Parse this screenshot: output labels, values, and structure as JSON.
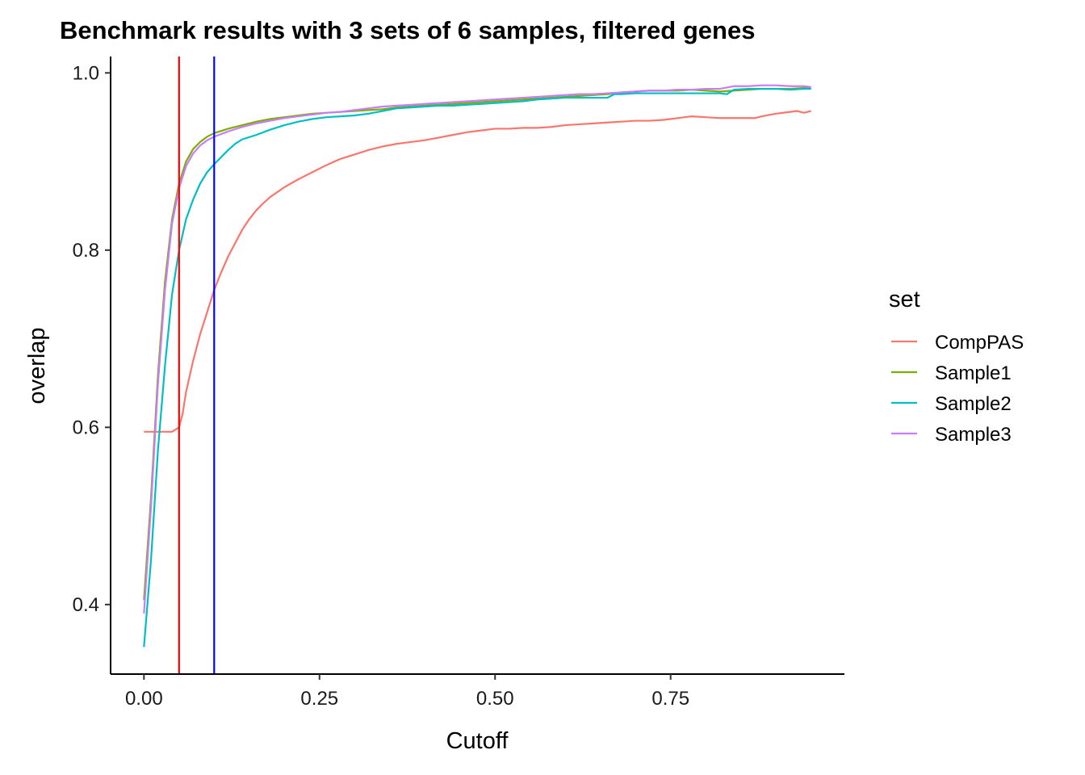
{
  "chart_data": {
    "type": "line",
    "title": "Benchmark results with 3 sets of 6 samples, filtered genes",
    "xlabel": "Cutoff",
    "ylabel": "overlap",
    "xlim": [
      -0.0475,
      0.9975
    ],
    "ylim": [
      0.3215,
      1.0185
    ],
    "x_ticks": [
      {
        "value": 0.0,
        "label": "0.00"
      },
      {
        "value": 0.25,
        "label": "0.25"
      },
      {
        "value": 0.5,
        "label": "0.50"
      },
      {
        "value": 0.75,
        "label": "0.75"
      }
    ],
    "y_ticks": [
      {
        "value": 0.4,
        "label": "0.4"
      },
      {
        "value": 0.6,
        "label": "0.6"
      },
      {
        "value": 0.8,
        "label": "0.8"
      },
      {
        "value": 1.0,
        "label": "1.0"
      }
    ],
    "grid": false,
    "vlines": [
      {
        "x": 0.05,
        "color": "#FF0000"
      },
      {
        "x": 0.1,
        "color": "#0000FF"
      }
    ],
    "legend": {
      "title": "set",
      "position": "right",
      "entries": [
        {
          "label": "CompPAS",
          "color": "#F8766D"
        },
        {
          "label": "Sample1",
          "color": "#7CAE00"
        },
        {
          "label": "Sample2",
          "color": "#00BFC4"
        },
        {
          "label": "Sample3",
          "color": "#C77CFF"
        }
      ]
    },
    "series": [
      {
        "name": "CompPAS",
        "color": "#F8766D",
        "points": [
          [
            0.0,
            0.595
          ],
          [
            0.01,
            0.595
          ],
          [
            0.02,
            0.595
          ],
          [
            0.03,
            0.595
          ],
          [
            0.04,
            0.595
          ],
          [
            0.05,
            0.6
          ],
          [
            0.055,
            0.615
          ],
          [
            0.06,
            0.64
          ],
          [
            0.07,
            0.675
          ],
          [
            0.08,
            0.705
          ],
          [
            0.09,
            0.73
          ],
          [
            0.1,
            0.755
          ],
          [
            0.11,
            0.775
          ],
          [
            0.12,
            0.793
          ],
          [
            0.13,
            0.808
          ],
          [
            0.14,
            0.823
          ],
          [
            0.15,
            0.835
          ],
          [
            0.16,
            0.845
          ],
          [
            0.17,
            0.853
          ],
          [
            0.18,
            0.86
          ],
          [
            0.2,
            0.871
          ],
          [
            0.22,
            0.88
          ],
          [
            0.24,
            0.888
          ],
          [
            0.26,
            0.896
          ],
          [
            0.28,
            0.903
          ],
          [
            0.3,
            0.908
          ],
          [
            0.32,
            0.913
          ],
          [
            0.34,
            0.917
          ],
          [
            0.36,
            0.92
          ],
          [
            0.38,
            0.922
          ],
          [
            0.4,
            0.924
          ],
          [
            0.42,
            0.927
          ],
          [
            0.44,
            0.93
          ],
          [
            0.46,
            0.933
          ],
          [
            0.48,
            0.935
          ],
          [
            0.5,
            0.937
          ],
          [
            0.52,
            0.937
          ],
          [
            0.54,
            0.938
          ],
          [
            0.56,
            0.938
          ],
          [
            0.58,
            0.939
          ],
          [
            0.6,
            0.941
          ],
          [
            0.62,
            0.942
          ],
          [
            0.64,
            0.943
          ],
          [
            0.66,
            0.944
          ],
          [
            0.68,
            0.945
          ],
          [
            0.7,
            0.946
          ],
          [
            0.72,
            0.946
          ],
          [
            0.74,
            0.947
          ],
          [
            0.76,
            0.949
          ],
          [
            0.78,
            0.951
          ],
          [
            0.8,
            0.95
          ],
          [
            0.82,
            0.949
          ],
          [
            0.84,
            0.949
          ],
          [
            0.86,
            0.949
          ],
          [
            0.87,
            0.949
          ],
          [
            0.88,
            0.951
          ],
          [
            0.9,
            0.954
          ],
          [
            0.92,
            0.956
          ],
          [
            0.93,
            0.957
          ],
          [
            0.94,
            0.955
          ],
          [
            0.95,
            0.957
          ]
        ]
      },
      {
        "name": "Sample1",
        "color": "#7CAE00",
        "points": [
          [
            0.0,
            0.405
          ],
          [
            0.01,
            0.52
          ],
          [
            0.02,
            0.66
          ],
          [
            0.03,
            0.765
          ],
          [
            0.04,
            0.835
          ],
          [
            0.05,
            0.875
          ],
          [
            0.06,
            0.9
          ],
          [
            0.07,
            0.914
          ],
          [
            0.08,
            0.922
          ],
          [
            0.09,
            0.928
          ],
          [
            0.1,
            0.932
          ],
          [
            0.12,
            0.937
          ],
          [
            0.14,
            0.941
          ],
          [
            0.16,
            0.945
          ],
          [
            0.18,
            0.948
          ],
          [
            0.2,
            0.95
          ],
          [
            0.22,
            0.952
          ],
          [
            0.24,
            0.954
          ],
          [
            0.26,
            0.955
          ],
          [
            0.28,
            0.956
          ],
          [
            0.3,
            0.957
          ],
          [
            0.32,
            0.958
          ],
          [
            0.34,
            0.959
          ],
          [
            0.36,
            0.961
          ],
          [
            0.38,
            0.962
          ],
          [
            0.4,
            0.963
          ],
          [
            0.42,
            0.964
          ],
          [
            0.44,
            0.965
          ],
          [
            0.46,
            0.966
          ],
          [
            0.48,
            0.967
          ],
          [
            0.5,
            0.968
          ],
          [
            0.52,
            0.969
          ],
          [
            0.54,
            0.97
          ],
          [
            0.56,
            0.971
          ],
          [
            0.58,
            0.972
          ],
          [
            0.6,
            0.973
          ],
          [
            0.62,
            0.974
          ],
          [
            0.64,
            0.975
          ],
          [
            0.66,
            0.976
          ],
          [
            0.68,
            0.978
          ],
          [
            0.7,
            0.979
          ],
          [
            0.72,
            0.98
          ],
          [
            0.74,
            0.98
          ],
          [
            0.76,
            0.98
          ],
          [
            0.78,
            0.981
          ],
          [
            0.8,
            0.98
          ],
          [
            0.82,
            0.979
          ],
          [
            0.84,
            0.98
          ],
          [
            0.86,
            0.981
          ],
          [
            0.88,
            0.982
          ],
          [
            0.9,
            0.982
          ],
          [
            0.92,
            0.982
          ],
          [
            0.94,
            0.983
          ],
          [
            0.95,
            0.983
          ]
        ]
      },
      {
        "name": "Sample2",
        "color": "#00BFC4",
        "points": [
          [
            0.0,
            0.352
          ],
          [
            0.01,
            0.45
          ],
          [
            0.02,
            0.575
          ],
          [
            0.03,
            0.67
          ],
          [
            0.04,
            0.75
          ],
          [
            0.05,
            0.8
          ],
          [
            0.06,
            0.835
          ],
          [
            0.07,
            0.857
          ],
          [
            0.08,
            0.875
          ],
          [
            0.09,
            0.888
          ],
          [
            0.1,
            0.897
          ],
          [
            0.11,
            0.905
          ],
          [
            0.12,
            0.913
          ],
          [
            0.13,
            0.92
          ],
          [
            0.14,
            0.925
          ],
          [
            0.16,
            0.93
          ],
          [
            0.18,
            0.936
          ],
          [
            0.2,
            0.941
          ],
          [
            0.22,
            0.945
          ],
          [
            0.24,
            0.948
          ],
          [
            0.26,
            0.95
          ],
          [
            0.28,
            0.951
          ],
          [
            0.3,
            0.952
          ],
          [
            0.32,
            0.954
          ],
          [
            0.34,
            0.957
          ],
          [
            0.36,
            0.96
          ],
          [
            0.38,
            0.961
          ],
          [
            0.4,
            0.962
          ],
          [
            0.42,
            0.963
          ],
          [
            0.44,
            0.963
          ],
          [
            0.46,
            0.964
          ],
          [
            0.48,
            0.965
          ],
          [
            0.5,
            0.966
          ],
          [
            0.52,
            0.967
          ],
          [
            0.54,
            0.968
          ],
          [
            0.56,
            0.97
          ],
          [
            0.58,
            0.971
          ],
          [
            0.6,
            0.972
          ],
          [
            0.62,
            0.972
          ],
          [
            0.64,
            0.972
          ],
          [
            0.66,
            0.972
          ],
          [
            0.67,
            0.976
          ],
          [
            0.68,
            0.976
          ],
          [
            0.7,
            0.977
          ],
          [
            0.72,
            0.977
          ],
          [
            0.74,
            0.977
          ],
          [
            0.76,
            0.977
          ],
          [
            0.78,
            0.977
          ],
          [
            0.8,
            0.977
          ],
          [
            0.82,
            0.977
          ],
          [
            0.83,
            0.976
          ],
          [
            0.84,
            0.981
          ],
          [
            0.86,
            0.982
          ],
          [
            0.88,
            0.982
          ],
          [
            0.9,
            0.982
          ],
          [
            0.92,
            0.981
          ],
          [
            0.94,
            0.982
          ],
          [
            0.95,
            0.982
          ]
        ]
      },
      {
        "name": "Sample3",
        "color": "#C77CFF",
        "points": [
          [
            0.0,
            0.39
          ],
          [
            0.01,
            0.51
          ],
          [
            0.02,
            0.65
          ],
          [
            0.03,
            0.755
          ],
          [
            0.04,
            0.83
          ],
          [
            0.05,
            0.87
          ],
          [
            0.06,
            0.895
          ],
          [
            0.07,
            0.909
          ],
          [
            0.08,
            0.918
          ],
          [
            0.09,
            0.924
          ],
          [
            0.1,
            0.928
          ],
          [
            0.12,
            0.934
          ],
          [
            0.14,
            0.939
          ],
          [
            0.16,
            0.943
          ],
          [
            0.18,
            0.946
          ],
          [
            0.2,
            0.949
          ],
          [
            0.22,
            0.951
          ],
          [
            0.24,
            0.953
          ],
          [
            0.26,
            0.955
          ],
          [
            0.28,
            0.956
          ],
          [
            0.3,
            0.958
          ],
          [
            0.32,
            0.96
          ],
          [
            0.34,
            0.962
          ],
          [
            0.36,
            0.963
          ],
          [
            0.38,
            0.964
          ],
          [
            0.4,
            0.965
          ],
          [
            0.42,
            0.966
          ],
          [
            0.44,
            0.967
          ],
          [
            0.46,
            0.968
          ],
          [
            0.48,
            0.969
          ],
          [
            0.5,
            0.97
          ],
          [
            0.52,
            0.971
          ],
          [
            0.54,
            0.972
          ],
          [
            0.56,
            0.973
          ],
          [
            0.58,
            0.974
          ],
          [
            0.6,
            0.975
          ],
          [
            0.62,
            0.976
          ],
          [
            0.64,
            0.976
          ],
          [
            0.66,
            0.977
          ],
          [
            0.68,
            0.978
          ],
          [
            0.7,
            0.979
          ],
          [
            0.72,
            0.98
          ],
          [
            0.74,
            0.98
          ],
          [
            0.76,
            0.981
          ],
          [
            0.78,
            0.981
          ],
          [
            0.8,
            0.982
          ],
          [
            0.82,
            0.982
          ],
          [
            0.84,
            0.985
          ],
          [
            0.86,
            0.985
          ],
          [
            0.88,
            0.986
          ],
          [
            0.9,
            0.986
          ],
          [
            0.92,
            0.985
          ],
          [
            0.94,
            0.985
          ],
          [
            0.95,
            0.984
          ]
        ]
      }
    ]
  }
}
